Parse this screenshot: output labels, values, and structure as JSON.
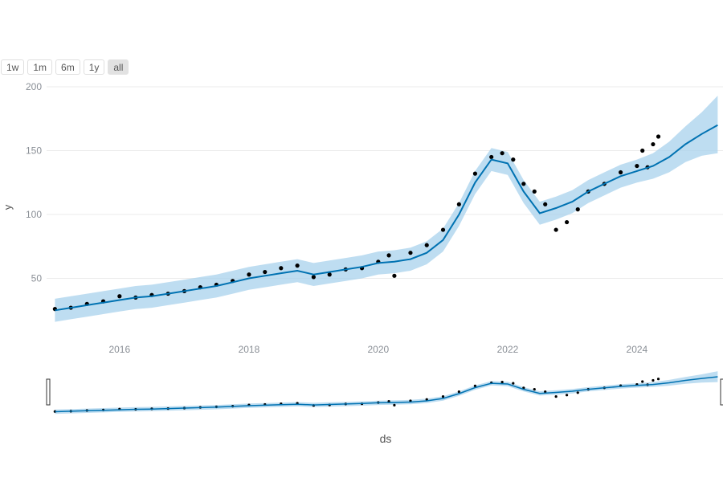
{
  "range_buttons": {
    "items": [
      {
        "label": "1w"
      },
      {
        "label": "1m"
      },
      {
        "label": "6m"
      },
      {
        "label": "1y"
      },
      {
        "label": "all",
        "active": true
      }
    ]
  },
  "colors": {
    "forecast": "#0072b2",
    "band": "#a8d2ec",
    "points": "#000000",
    "grid": "#ebebeb",
    "tick_text": "#8a8f96"
  },
  "chart_data": {
    "type": "line",
    "title": "",
    "xlabel": "ds",
    "ylabel": "y",
    "xlim": [
      "2014-11-15",
      "2025-05-01"
    ],
    "ylim": [
      0,
      200
    ],
    "yticks": [
      50,
      100,
      150,
      200
    ],
    "xticks": [
      "2016",
      "2018",
      "2020",
      "2022",
      "2024"
    ],
    "grid": true,
    "range_slider": true,
    "series": [
      {
        "role": "forecast_line",
        "x": [
          "2015-01-01",
          "2015-04-01",
          "2015-07-01",
          "2015-10-01",
          "2016-01-01",
          "2016-04-01",
          "2016-07-01",
          "2016-10-01",
          "2017-01-01",
          "2017-04-01",
          "2017-07-01",
          "2017-10-01",
          "2018-01-01",
          "2018-04-01",
          "2018-07-01",
          "2018-10-01",
          "2019-01-01",
          "2019-04-01",
          "2019-07-01",
          "2019-10-01",
          "2020-01-01",
          "2020-04-01",
          "2020-07-01",
          "2020-10-01",
          "2021-01-01",
          "2021-04-01",
          "2021-07-01",
          "2021-10-01",
          "2022-01-01",
          "2022-04-01",
          "2022-07-01",
          "2022-10-01",
          "2023-01-01",
          "2023-04-01",
          "2023-07-01",
          "2023-10-01",
          "2024-01-01",
          "2024-04-01",
          "2024-07-01",
          "2024-10-01",
          "2025-01-01",
          "2025-04-01"
        ],
        "y": [
          25,
          27,
          29,
          31,
          33,
          35,
          36,
          38,
          40,
          42,
          44,
          47,
          50,
          52,
          54,
          56,
          53,
          55,
          57,
          59,
          62,
          63,
          65,
          70,
          80,
          100,
          125,
          143,
          140,
          118,
          101,
          105,
          110,
          118,
          124,
          130,
          134,
          138,
          145,
          155,
          163,
          170
        ]
      },
      {
        "role": "uncertainty_band_upper",
        "x": [
          "2015-01-01",
          "2015-04-01",
          "2015-07-01",
          "2015-10-01",
          "2016-01-01",
          "2016-04-01",
          "2016-07-01",
          "2016-10-01",
          "2017-01-01",
          "2017-04-01",
          "2017-07-01",
          "2017-10-01",
          "2018-01-01",
          "2018-04-01",
          "2018-07-01",
          "2018-10-01",
          "2019-01-01",
          "2019-04-01",
          "2019-07-01",
          "2019-10-01",
          "2020-01-01",
          "2020-04-01",
          "2020-07-01",
          "2020-10-01",
          "2021-01-01",
          "2021-04-01",
          "2021-07-01",
          "2021-10-01",
          "2022-01-01",
          "2022-04-01",
          "2022-07-01",
          "2022-10-01",
          "2023-01-01",
          "2023-04-01",
          "2023-07-01",
          "2023-10-01",
          "2024-01-01",
          "2024-04-01",
          "2024-07-01",
          "2024-10-01",
          "2025-01-01",
          "2025-04-01"
        ],
        "y": [
          34,
          36,
          38,
          40,
          42,
          44,
          45,
          47,
          49,
          51,
          53,
          56,
          59,
          61,
          63,
          65,
          62,
          64,
          66,
          68,
          71,
          72,
          74,
          79,
          89,
          109,
          134,
          152,
          149,
          127,
          110,
          114,
          119,
          127,
          133,
          139,
          143,
          148,
          157,
          169,
          180,
          193
        ]
      },
      {
        "role": "uncertainty_band_lower",
        "x": [
          "2015-01-01",
          "2015-04-01",
          "2015-07-01",
          "2015-10-01",
          "2016-01-01",
          "2016-04-01",
          "2016-07-01",
          "2016-10-01",
          "2017-01-01",
          "2017-04-01",
          "2017-07-01",
          "2017-10-01",
          "2018-01-01",
          "2018-04-01",
          "2018-07-01",
          "2018-10-01",
          "2019-01-01",
          "2019-04-01",
          "2019-07-01",
          "2019-10-01",
          "2020-01-01",
          "2020-04-01",
          "2020-07-01",
          "2020-10-01",
          "2021-01-01",
          "2021-04-01",
          "2021-07-01",
          "2021-10-01",
          "2022-01-01",
          "2022-04-01",
          "2022-07-01",
          "2022-10-01",
          "2023-01-01",
          "2023-04-01",
          "2023-07-01",
          "2023-10-01",
          "2024-01-01",
          "2024-04-01",
          "2024-07-01",
          "2024-10-01",
          "2025-01-01",
          "2025-04-01"
        ],
        "y": [
          16,
          18,
          20,
          22,
          24,
          26,
          27,
          29,
          31,
          33,
          35,
          38,
          41,
          43,
          45,
          47,
          44,
          46,
          48,
          50,
          53,
          54,
          56,
          61,
          71,
          91,
          116,
          134,
          131,
          109,
          92,
          96,
          101,
          109,
          115,
          121,
          125,
          128,
          133,
          141,
          146,
          148
        ]
      },
      {
        "role": "observed_points",
        "x": [
          "2015-01-01",
          "2015-04-01",
          "2015-07-01",
          "2015-10-01",
          "2016-01-01",
          "2016-04-01",
          "2016-07-01",
          "2016-10-01",
          "2017-01-01",
          "2017-04-01",
          "2017-07-01",
          "2017-10-01",
          "2018-01-01",
          "2018-04-01",
          "2018-07-01",
          "2018-10-01",
          "2019-01-01",
          "2019-04-01",
          "2019-07-01",
          "2019-10-01",
          "2020-01-01",
          "2020-03-01",
          "2020-04-01",
          "2020-07-01",
          "2020-10-01",
          "2021-01-01",
          "2021-04-01",
          "2021-07-01",
          "2021-10-01",
          "2021-12-01",
          "2022-02-01",
          "2022-04-01",
          "2022-06-01",
          "2022-08-01",
          "2022-10-01",
          "2022-12-01",
          "2023-02-01",
          "2023-04-01",
          "2023-07-01",
          "2023-10-01",
          "2024-01-01",
          "2024-02-01",
          "2024-03-01",
          "2024-04-01",
          "2024-05-01"
        ],
        "y": [
          26,
          27,
          30,
          32,
          36,
          35,
          37,
          38,
          40,
          43,
          45,
          48,
          53,
          55,
          58,
          60,
          51,
          53,
          57,
          58,
          63,
          68,
          52,
          70,
          76,
          88,
          108,
          132,
          145,
          148,
          143,
          124,
          118,
          108,
          88,
          94,
          104,
          118,
          124,
          133,
          138,
          150,
          137,
          155,
          161
        ]
      }
    ]
  }
}
